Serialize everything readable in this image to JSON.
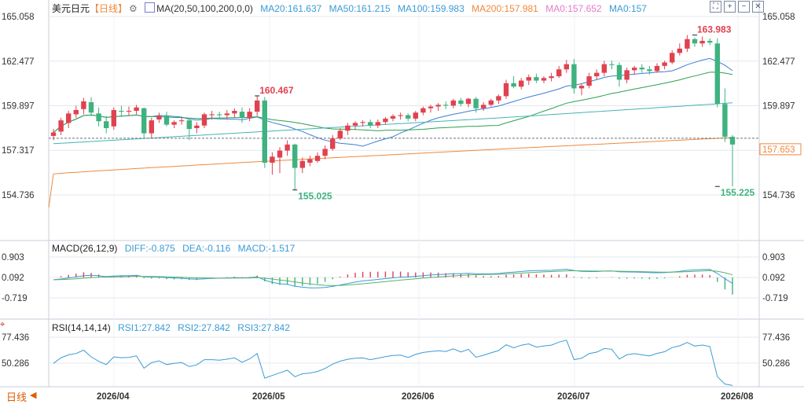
{
  "header": {
    "symbol": "美元日元",
    "period": "【日线】",
    "gear_icon": "gear-icon",
    "ma_label": "MA(20,50,100,200,0,0)",
    "ma20": "MA20:161.637",
    "ma50": "MA50:161.215",
    "ma100": "MA100:159.983",
    "ma200": "MA200:157.981",
    "ma0a": "MA0:157.652",
    "ma0b": "MA0:157"
  },
  "toolbar": [
    "fit-icon",
    "zoom-in-icon",
    "zoom-out-icon",
    "close-icon"
  ],
  "colors": {
    "up": "#e0424f",
    "down": "#3fb27f",
    "ma20": "#3b7fd4",
    "ma50": "#2aa150",
    "ma100": "#46b4b4",
    "ma200": "#f0883c",
    "ma0a": "#e879c8",
    "ma0b": "#3b7fd4",
    "last_price": "#f0883c",
    "diff": "#3b9bd6",
    "dea": "#57b36a",
    "grid": "#e3e7ee"
  },
  "price_axis": {
    "ticks": [
      "165.058",
      "162.477",
      "159.897",
      "157.317",
      "154.736"
    ],
    "last": "157.653"
  },
  "annotations": {
    "high1": "160.467",
    "low1": "155.025",
    "high2": "163.983",
    "low2": "155.225"
  },
  "macd_header": {
    "label": "MACD(26,12,9)",
    "diff": "DIFF:-0.875",
    "dea": "DEA:-0.116",
    "macd": "MACD:-1.517"
  },
  "macd_axis": [
    "0.903",
    "0.092",
    "-0.719"
  ],
  "rsi_header": {
    "label": "RSI(14,14,14)",
    "rsi1": "RSI1:27.842",
    "rsi2": "RSI2:27.842",
    "rsi3": "RSI3:27.842"
  },
  "rsi_axis": [
    "77.436",
    "50.286"
  ],
  "x_axis": [
    "2026/04",
    "2026/05",
    "2026/06",
    "2026/07",
    "2026/08"
  ],
  "bottom": {
    "icon": "crosshair-icon",
    "period": "日线",
    "arrows": [
      "◀",
      "▶"
    ]
  },
  "chart_data": {
    "type": "candlestick",
    "title": "美元日元【日线】",
    "ylim": [
      154.0,
      165.5
    ],
    "x_labels": [
      "2026/04",
      "2026/05",
      "2026/06",
      "2026/07",
      "2026/08"
    ],
    "candles": [
      [
        158.15,
        158.55,
        157.9,
        158.35
      ],
      [
        158.4,
        159.2,
        158.2,
        159.05
      ],
      [
        158.9,
        159.6,
        158.6,
        159.45
      ],
      [
        159.4,
        159.9,
        159.2,
        159.65
      ],
      [
        159.7,
        160.35,
        159.4,
        160.15
      ],
      [
        160.1,
        160.4,
        159.3,
        159.5
      ],
      [
        159.45,
        159.8,
        158.7,
        159.0
      ],
      [
        159.0,
        159.3,
        158.3,
        158.6
      ],
      [
        158.7,
        159.8,
        158.5,
        159.65
      ],
      [
        159.6,
        159.9,
        159.3,
        159.55
      ],
      [
        159.55,
        159.85,
        159.3,
        159.6
      ],
      [
        159.6,
        159.95,
        159.4,
        159.8
      ],
      [
        159.75,
        159.8,
        158.0,
        158.3
      ],
      [
        158.3,
        159.2,
        158.0,
        159.05
      ],
      [
        159.1,
        159.5,
        158.9,
        159.3
      ],
      [
        159.3,
        159.55,
        158.7,
        158.8
      ],
      [
        158.8,
        159.05,
        158.6,
        158.95
      ],
      [
        159.0,
        159.2,
        158.8,
        159.05
      ],
      [
        159.05,
        159.2,
        157.9,
        158.55
      ],
      [
        158.6,
        158.95,
        158.3,
        158.75
      ],
      [
        158.75,
        159.5,
        158.6,
        159.4
      ],
      [
        159.35,
        159.6,
        159.1,
        159.4
      ],
      [
        159.4,
        159.55,
        159.2,
        159.35
      ],
      [
        159.35,
        159.65,
        159.1,
        159.45
      ],
      [
        159.45,
        159.75,
        159.2,
        159.6
      ],
      [
        159.55,
        159.8,
        158.9,
        159.2
      ],
      [
        159.2,
        159.75,
        159.0,
        159.55
      ],
      [
        159.55,
        160.467,
        159.3,
        160.2
      ],
      [
        160.2,
        160.4,
        156.3,
        156.6
      ],
      [
        156.6,
        157.2,
        155.9,
        156.95
      ],
      [
        156.9,
        157.5,
        156.0,
        157.3
      ],
      [
        157.3,
        157.9,
        157.0,
        157.65
      ],
      [
        157.65,
        157.7,
        155.025,
        156.3
      ],
      [
        156.3,
        156.9,
        156.0,
        156.7
      ],
      [
        156.6,
        157.0,
        156.4,
        156.8
      ],
      [
        156.7,
        157.2,
        156.6,
        157.0
      ],
      [
        157.0,
        157.6,
        156.8,
        157.4
      ],
      [
        157.4,
        158.2,
        157.3,
        158.0
      ],
      [
        158.0,
        158.6,
        157.9,
        158.45
      ],
      [
        158.45,
        158.9,
        158.2,
        158.75
      ],
      [
        158.75,
        159.0,
        158.5,
        158.9
      ],
      [
        158.9,
        159.05,
        158.7,
        158.95
      ],
      [
        158.95,
        159.1,
        158.6,
        158.75
      ],
      [
        158.75,
        159.1,
        158.6,
        158.95
      ],
      [
        158.95,
        159.25,
        158.8,
        159.15
      ],
      [
        159.15,
        159.4,
        159.0,
        159.3
      ],
      [
        159.3,
        159.5,
        159.1,
        159.35
      ],
      [
        159.35,
        159.45,
        159.0,
        159.15
      ],
      [
        159.15,
        159.6,
        159.0,
        159.5
      ],
      [
        159.5,
        159.85,
        159.35,
        159.75
      ],
      [
        159.75,
        159.95,
        159.5,
        159.85
      ],
      [
        159.85,
        160.05,
        159.6,
        159.95
      ],
      [
        159.95,
        160.15,
        159.7,
        159.9
      ],
      [
        159.9,
        160.3,
        159.75,
        160.2
      ],
      [
        160.2,
        160.35,
        159.85,
        160.0
      ],
      [
        160.0,
        160.35,
        159.8,
        160.3
      ],
      [
        160.3,
        160.4,
        159.5,
        159.75
      ],
      [
        159.75,
        160.1,
        159.6,
        159.95
      ],
      [
        159.95,
        160.3,
        159.85,
        160.2
      ],
      [
        160.2,
        160.55,
        160.0,
        160.45
      ],
      [
        160.45,
        161.4,
        160.3,
        161.2
      ],
      [
        161.2,
        161.6,
        160.9,
        161.0
      ],
      [
        161.0,
        161.5,
        160.85,
        161.35
      ],
      [
        161.35,
        161.7,
        161.1,
        161.55
      ],
      [
        161.55,
        161.75,
        161.2,
        161.35
      ],
      [
        161.35,
        161.6,
        161.2,
        161.5
      ],
      [
        161.5,
        161.8,
        161.3,
        161.6
      ],
      [
        161.6,
        162.2,
        161.5,
        162.0
      ],
      [
        162.0,
        162.55,
        161.8,
        162.3
      ],
      [
        162.3,
        162.6,
        160.6,
        160.9
      ],
      [
        160.9,
        161.2,
        160.5,
        161.05
      ],
      [
        161.05,
        161.8,
        160.9,
        161.6
      ],
      [
        161.6,
        162.0,
        161.4,
        161.8
      ],
      [
        161.8,
        162.5,
        161.6,
        162.3
      ],
      [
        162.3,
        162.5,
        162.0,
        162.25
      ],
      [
        162.25,
        162.4,
        161.0,
        161.4
      ],
      [
        161.4,
        162.1,
        161.2,
        161.95
      ],
      [
        161.95,
        162.2,
        161.7,
        162.1
      ],
      [
        162.1,
        162.3,
        161.8,
        162.0
      ],
      [
        162.0,
        162.2,
        161.7,
        161.9
      ],
      [
        161.9,
        162.35,
        161.8,
        162.2
      ],
      [
        162.2,
        162.5,
        162.0,
        162.4
      ],
      [
        162.4,
        163.1,
        162.3,
        162.95
      ],
      [
        162.95,
        163.5,
        162.8,
        163.2
      ],
      [
        163.2,
        163.983,
        163.0,
        163.75
      ],
      [
        163.75,
        163.85,
        163.3,
        163.5
      ],
      [
        163.5,
        163.9,
        163.3,
        163.65
      ],
      [
        163.65,
        163.8,
        163.4,
        163.55
      ],
      [
        163.5,
        163.8,
        159.8,
        160.0
      ],
      [
        160.0,
        160.9,
        157.8,
        158.1
      ],
      [
        158.1,
        158.2,
        155.225,
        157.653
      ]
    ],
    "macd": {
      "diff_last": -0.875,
      "dea_last": -0.116,
      "hist_last": -1.517,
      "ylim": [
        -1.2,
        1.2
      ]
    },
    "rsi": {
      "last": 27.842,
      "ylim": [
        20,
        90
      ]
    }
  }
}
